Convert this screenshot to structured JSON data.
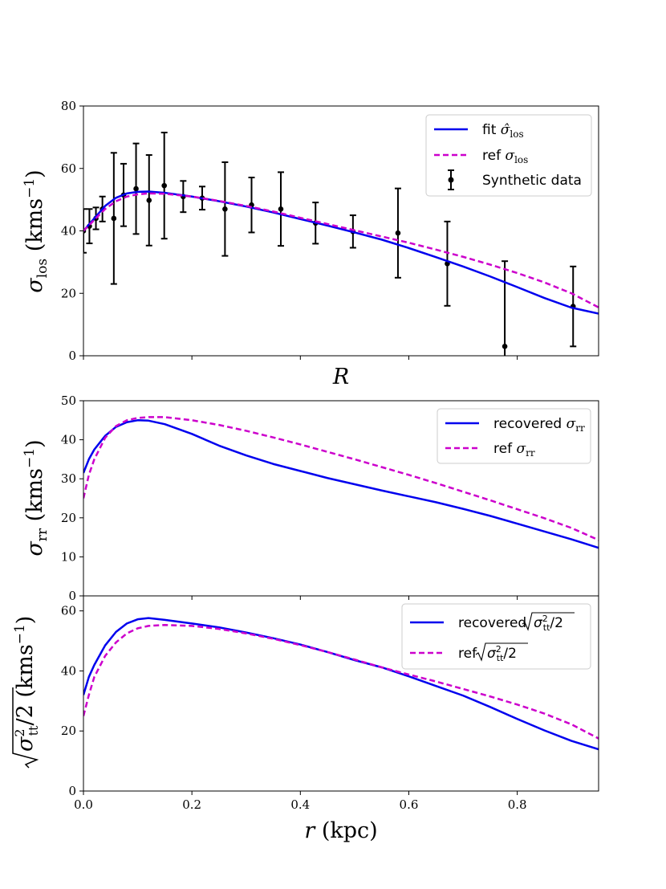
{
  "figure": {
    "colors": {
      "fit": "#0000ee",
      "ref": "#cc00cc",
      "data": "#000000"
    }
  },
  "chart_data": [
    {
      "type": "line",
      "panel": "top",
      "xlabel": "R",
      "ylabel": "σlos (kms−1)",
      "xlim": [
        0,
        0.95
      ],
      "ylim": [
        0,
        80
      ],
      "yticks": [
        "0",
        "20",
        "40",
        "60",
        "80"
      ],
      "xticks_labeled": false,
      "legend_position": "top-right",
      "legend": [
        "fit σ̂los",
        "ref σlos",
        "Synthetic data"
      ],
      "series": [
        {
          "name": "fit σ̂los",
          "style": "solid",
          "x": [
            0,
            0.02,
            0.04,
            0.06,
            0.08,
            0.1,
            0.12,
            0.15,
            0.2,
            0.25,
            0.3,
            0.35,
            0.4,
            0.45,
            0.5,
            0.55,
            0.6,
            0.65,
            0.7,
            0.75,
            0.8,
            0.85,
            0.9,
            0.95
          ],
          "y": [
            40,
            44,
            48,
            50.6,
            52,
            52.5,
            52.6,
            52.2,
            51,
            49.5,
            47.8,
            45.9,
            43.8,
            41.7,
            39.5,
            37.2,
            34.5,
            31.6,
            28.6,
            25.4,
            22,
            18.5,
            15.4,
            13.5
          ]
        },
        {
          "name": "ref σlos",
          "style": "dashed",
          "x": [
            0,
            0.02,
            0.04,
            0.06,
            0.08,
            0.1,
            0.12,
            0.15,
            0.2,
            0.25,
            0.3,
            0.35,
            0.4,
            0.45,
            0.5,
            0.55,
            0.6,
            0.65,
            0.7,
            0.75,
            0.8,
            0.85,
            0.9,
            0.95
          ],
          "y": [
            40,
            43.5,
            47,
            49.5,
            51,
            51.7,
            52,
            51.9,
            51,
            49.6,
            48,
            46.2,
            44.2,
            42.2,
            40.2,
            38.2,
            36.2,
            34,
            31.7,
            29.2,
            26.5,
            23.5,
            20,
            15.5
          ]
        }
      ],
      "points": {
        "name": "Synthetic data",
        "x": [
          0,
          0.011,
          0.023,
          0.035,
          0.056,
          0.074,
          0.097,
          0.121,
          0.149,
          0.184,
          0.219,
          0.261,
          0.31,
          0.364,
          0.428,
          0.497,
          0.58,
          0.671,
          0.777,
          0.903
        ],
        "y": [
          40,
          41.5,
          44,
          47,
          44,
          51.5,
          53.5,
          49.8,
          54.5,
          51,
          50.5,
          47,
          48.3,
          47,
          42.5,
          39.8,
          39.3,
          29.5,
          3,
          15.8
        ],
        "err": [
          7,
          5.5,
          3.5,
          4,
          21,
          10,
          14.5,
          14.5,
          17,
          5,
          3.7,
          15,
          8.8,
          11.8,
          6.6,
          5.2,
          14.3,
          13.5,
          27.3,
          12.8
        ]
      }
    },
    {
      "type": "line",
      "panel": "middle",
      "ylabel": "σrr (kms−1)",
      "xlim": [
        0,
        0.95
      ],
      "ylim": [
        0,
        50
      ],
      "yticks": [
        "0",
        "10",
        "20",
        "30",
        "40",
        "50"
      ],
      "legend_position": "top-right",
      "legend": [
        "recovered σrr",
        "ref σrr"
      ],
      "series": [
        {
          "name": "recovered σrr",
          "style": "solid",
          "x": [
            0,
            0.01,
            0.02,
            0.04,
            0.06,
            0.08,
            0.1,
            0.12,
            0.15,
            0.2,
            0.25,
            0.3,
            0.35,
            0.4,
            0.45,
            0.5,
            0.55,
            0.6,
            0.65,
            0.7,
            0.75,
            0.8,
            0.85,
            0.9,
            0.95
          ],
          "y": [
            31.5,
            35,
            37.5,
            41,
            43.3,
            44.5,
            45,
            44.9,
            44,
            41.5,
            38.5,
            36,
            33.8,
            32,
            30.2,
            28.6,
            27,
            25.5,
            24,
            22.3,
            20.5,
            18.5,
            16.5,
            14.5,
            12.3
          ]
        },
        {
          "name": "ref σrr",
          "style": "dashed",
          "x": [
            0,
            0.01,
            0.02,
            0.04,
            0.06,
            0.08,
            0.1,
            0.12,
            0.15,
            0.2,
            0.25,
            0.3,
            0.35,
            0.4,
            0.45,
            0.5,
            0.55,
            0.6,
            0.65,
            0.7,
            0.75,
            0.8,
            0.85,
            0.9,
            0.95
          ],
          "y": [
            25,
            31,
            35,
            40.5,
            43.5,
            45,
            45.6,
            45.8,
            45.8,
            45,
            43.8,
            42.3,
            40.6,
            38.8,
            36.9,
            35,
            33,
            31,
            28.9,
            26.7,
            24.5,
            22.2,
            19.9,
            17.4,
            14.3
          ]
        }
      ]
    },
    {
      "type": "line",
      "panel": "bottom",
      "xlabel": "r (kpc)",
      "ylabel": "√(σtt²/2) (kms−1)",
      "xlim": [
        0,
        0.95
      ],
      "ylim": [
        0,
        65
      ],
      "yticks": [
        "0",
        "20",
        "40",
        "60"
      ],
      "xticks": [
        "0.0",
        "0.2",
        "0.4",
        "0.6",
        "0.8"
      ],
      "legend_position": "top-right",
      "legend": [
        "recovered √(σtt²/2)",
        "ref √(σtt²/2)"
      ],
      "series": [
        {
          "name": "recovered √(σtt²/2)",
          "style": "solid",
          "x": [
            0,
            0.01,
            0.02,
            0.04,
            0.06,
            0.08,
            0.1,
            0.12,
            0.15,
            0.2,
            0.25,
            0.3,
            0.35,
            0.4,
            0.45,
            0.5,
            0.55,
            0.6,
            0.65,
            0.7,
            0.75,
            0.8,
            0.85,
            0.9,
            0.95
          ],
          "y": [
            32,
            38,
            42,
            48.5,
            53,
            55.8,
            57.2,
            57.6,
            57,
            55.8,
            54.5,
            52.8,
            50.9,
            48.8,
            46.3,
            43.6,
            41.2,
            38.2,
            35,
            31.8,
            28,
            24,
            20.2,
            16.7,
            13.9
          ]
        },
        {
          "name": "ref √(σtt²/2)",
          "style": "dashed",
          "x": [
            0,
            0.01,
            0.02,
            0.04,
            0.06,
            0.08,
            0.1,
            0.12,
            0.15,
            0.2,
            0.25,
            0.3,
            0.35,
            0.4,
            0.45,
            0.5,
            0.55,
            0.6,
            0.65,
            0.7,
            0.75,
            0.8,
            0.85,
            0.9,
            0.95
          ],
          "y": [
            25,
            32,
            38,
            45,
            49.5,
            52.5,
            54.2,
            55,
            55.3,
            55,
            54,
            52.5,
            50.7,
            48.6,
            46.3,
            43.8,
            41.2,
            38.8,
            36.5,
            34,
            31.5,
            28.8,
            25.8,
            22.2,
            17.5
          ]
        }
      ]
    }
  ]
}
